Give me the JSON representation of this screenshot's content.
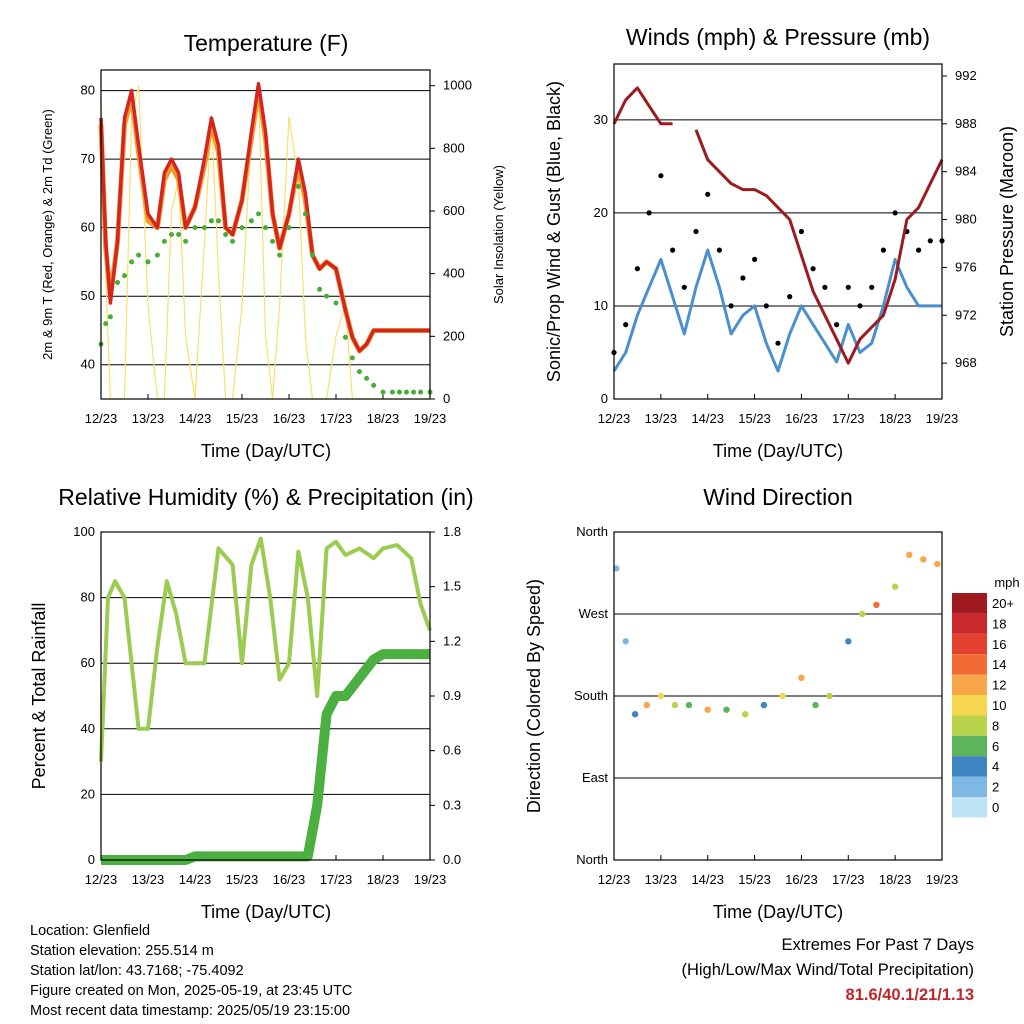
{
  "x_ticks": [
    "12/23",
    "13/23",
    "14/23",
    "15/23",
    "16/23",
    "17/23",
    "18/23",
    "19/23"
  ],
  "colors": {
    "temp_2m": "#d42520",
    "temp_9m": "#f39a2d",
    "dewpoint": "#47ad3a",
    "solar": "#f8e06a",
    "pressure": "#9c1b1e",
    "wind": "#4a90cf",
    "gust": "#000000",
    "rh": "#9bcb50",
    "precip": "#4bb040",
    "ext_values": "#c0272d"
  },
  "chart_data": [
    {
      "type": "line",
      "title": "Temperature (F)",
      "xlabel": "Time (Day/UTC)",
      "ylabel": "2m & 9m T (Red, Orange) & 2m Td (Green)",
      "ylabel_right": "Solar Insolation (Yellow)",
      "ylim": [
        35,
        83
      ],
      "y_ticks": [
        40,
        50,
        60,
        70,
        80
      ],
      "ylim_right": [
        0,
        1050
      ],
      "y_ticks_right": [
        0,
        200,
        400,
        600,
        800,
        1000
      ],
      "grid": true,
      "x_days": [
        0,
        0.1,
        0.2,
        0.35,
        0.5,
        0.65,
        0.8,
        1.0,
        1.2,
        1.35,
        1.5,
        1.65,
        1.8,
        2.0,
        2.2,
        2.35,
        2.5,
        2.65,
        2.8,
        3.0,
        3.2,
        3.35,
        3.5,
        3.65,
        3.8,
        4.0,
        4.2,
        4.35,
        4.5,
        4.65,
        4.8,
        5.0,
        5.2,
        5.35,
        5.5,
        5.65,
        5.8,
        6.0,
        6.2,
        6.35,
        6.5,
        6.65,
        6.8,
        7.0
      ],
      "series": [
        {
          "key": "temp_2m",
          "values": [
            76,
            58,
            49,
            58,
            76,
            80,
            72,
            62,
            60,
            68,
            70,
            68,
            60,
            63,
            70,
            76,
            72,
            60,
            59,
            64,
            74,
            81,
            74,
            62,
            57,
            62,
            70,
            65,
            56,
            54,
            55,
            54,
            48,
            44,
            42,
            43,
            45,
            45,
            45,
            45,
            45,
            45,
            45,
            45
          ]
        },
        {
          "key": "temp_9m",
          "values": [
            75,
            57,
            50,
            58,
            75,
            79,
            71,
            61,
            60,
            67,
            69,
            67,
            60,
            63,
            69,
            75,
            71,
            60,
            59,
            64,
            73,
            80,
            73,
            62,
            57,
            62,
            69,
            64,
            56,
            54,
            55,
            54,
            48,
            44,
            42,
            43,
            45,
            45,
            45,
            45,
            45,
            45,
            45,
            45
          ]
        },
        {
          "key": "dewpoint",
          "values": [
            43,
            46,
            47,
            52,
            53,
            55,
            56,
            55,
            56,
            58,
            59,
            59,
            58,
            60,
            60,
            61,
            61,
            59,
            58,
            60,
            61,
            62,
            60,
            58,
            56,
            60,
            66,
            62,
            56,
            51,
            50,
            49,
            44,
            41,
            39,
            38,
            37,
            36,
            36,
            36,
            36,
            36,
            36,
            36
          ]
        },
        {
          "key": "solar",
          "axis": "right",
          "values": [
            950,
            400,
            0,
            0,
            0,
            900,
            1000,
            300,
            0,
            0,
            600,
            700,
            200,
            0,
            500,
            900,
            400,
            0,
            0,
            300,
            850,
            1000,
            200,
            0,
            300,
            900,
            700,
            200,
            0,
            0,
            0,
            200,
            300,
            0,
            0,
            0,
            0,
            0,
            0,
            0,
            0,
            0,
            0,
            0
          ]
        }
      ]
    },
    {
      "type": "scatter",
      "title": "Winds (mph) & Pressure (mb)",
      "xlabel": "Time (Day/UTC)",
      "ylabel": "Sonic/Prop Wind & Gust (Blue, Black)",
      "ylabel_right": "Station Pressure (Maroon)",
      "ylim": [
        0,
        36
      ],
      "y_ticks": [
        0,
        10,
        20,
        30
      ],
      "ylim_right": [
        965,
        993
      ],
      "y_ticks_right": [
        968,
        972,
        976,
        980,
        984,
        988,
        992
      ],
      "grid": true,
      "x_days": [
        0,
        0.25,
        0.5,
        0.75,
        1.0,
        1.25,
        1.5,
        1.75,
        2.0,
        2.25,
        2.5,
        2.75,
        3.0,
        3.25,
        3.5,
        3.75,
        4.0,
        4.25,
        4.5,
        4.75,
        5.0,
        5.25,
        5.5,
        5.75,
        6.0,
        6.25,
        6.5,
        6.75,
        7.0
      ],
      "series": [
        {
          "key": "wind",
          "values": [
            3,
            5,
            9,
            12,
            15,
            11,
            7,
            12,
            16,
            12,
            7,
            9,
            10,
            6,
            3,
            7,
            10,
            8,
            6,
            4,
            8,
            5,
            6,
            10,
            15,
            12,
            10,
            10,
            10
          ]
        },
        {
          "key": "gust",
          "values": [
            5,
            8,
            14,
            20,
            24,
            16,
            12,
            18,
            22,
            16,
            10,
            13,
            15,
            10,
            6,
            11,
            18,
            14,
            12,
            8,
            12,
            10,
            12,
            16,
            20,
            18,
            16,
            17,
            17
          ]
        },
        {
          "key": "pressure",
          "axis": "right",
          "values": [
            988,
            990,
            991,
            989.5,
            988,
            988,
            null,
            987.5,
            985,
            984,
            983,
            982.5,
            982.5,
            982,
            981,
            980,
            977,
            974,
            972,
            970,
            968,
            970,
            971,
            972,
            975,
            980,
            981,
            983,
            985
          ]
        }
      ]
    },
    {
      "type": "line",
      "title": "Relative Humidity (%) & Precipitation (in)",
      "xlabel": "Time (Day/UTC)",
      "ylabel": "Percent & Total Rainfall",
      "ylim": [
        0,
        100
      ],
      "y_ticks": [
        0,
        20,
        40,
        60,
        80,
        100
      ],
      "ylim_right": [
        0,
        1.8
      ],
      "y_ticks_right": [
        "0.0",
        "0.3",
        "0.6",
        "0.9",
        "1.2",
        "1.5",
        "1.8"
      ],
      "grid": true,
      "x_days": [
        0,
        0.15,
        0.3,
        0.5,
        0.8,
        1.0,
        1.2,
        1.4,
        1.6,
        1.8,
        2.0,
        2.2,
        2.5,
        2.8,
        3.0,
        3.2,
        3.4,
        3.6,
        3.8,
        4.0,
        4.2,
        4.4,
        4.6,
        4.8,
        5.0,
        5.2,
        5.5,
        5.8,
        6.0,
        6.3,
        6.6,
        6.8,
        7.0
      ],
      "series": [
        {
          "key": "rh",
          "values": [
            30,
            80,
            85,
            80,
            40,
            40,
            65,
            85,
            75,
            60,
            60,
            60,
            95,
            90,
            60,
            90,
            98,
            80,
            55,
            60,
            94,
            80,
            50,
            95,
            97,
            93,
            95,
            92,
            95,
            96,
            92,
            78,
            70
          ]
        },
        {
          "key": "precip",
          "axis": "right",
          "values": [
            0,
            0,
            0,
            0,
            0,
            0,
            0,
            0,
            0,
            0,
            0.02,
            0.02,
            0.02,
            0.02,
            0.02,
            0.02,
            0.02,
            0.02,
            0.02,
            0.02,
            0.02,
            0.02,
            0.3,
            0.8,
            0.9,
            0.9,
            1.0,
            1.1,
            1.13,
            1.13,
            1.13,
            1.13,
            1.13
          ]
        }
      ]
    },
    {
      "type": "scatter",
      "title": "Wind Direction",
      "xlabel": "Time (Day/UTC)",
      "ylabel": "Direction (Colored By Speed)",
      "ylim": [
        0,
        360
      ],
      "y_ticks": [
        "North",
        "East",
        "South",
        "West",
        "North"
      ],
      "legend": {
        "title": "mph",
        "labels": [
          "20+",
          "18",
          "16",
          "14",
          "12",
          "10",
          "8",
          "6",
          "4",
          "2",
          "0"
        ],
        "colors": [
          "#9e1a1f",
          "#c9282d",
          "#e2412f",
          "#f26a35",
          "#f8a64a",
          "#f6d64f",
          "#b9d44b",
          "#5cb55b",
          "#3f84c3",
          "#7eb8e3",
          "#bde3f7"
        ]
      },
      "x_days": [
        0.05,
        0.25,
        0.45,
        0.7,
        1.0,
        1.3,
        1.6,
        2.0,
        2.4,
        2.8,
        3.2,
        3.6,
        4.0,
        4.3,
        4.6,
        5.0,
        5.3,
        5.6,
        6.0,
        6.3,
        6.6,
        6.9
      ],
      "values": [
        320,
        240,
        160,
        170,
        180,
        170,
        170,
        165,
        165,
        160,
        170,
        180,
        200,
        170,
        180,
        240,
        270,
        280,
        300,
        335,
        330,
        325
      ],
      "speeds": [
        2,
        2,
        4,
        12,
        10,
        8,
        6,
        12,
        6,
        8,
        4,
        10,
        12,
        6,
        8,
        4,
        8,
        14,
        8,
        12,
        12,
        12
      ]
    }
  ],
  "footer": {
    "location": "Location: Glenfield",
    "elevation": "Station elevation: 255.514 m",
    "latlon": "Station lat/lon: 43.7168; -75.4092",
    "created": "Figure created on Mon, 2025-05-19, at 23:45 UTC",
    "recent": "Most recent data timestamp: 2025/05/19 23:15:00"
  },
  "extremes": {
    "title": "Extremes For Past 7 Days",
    "subtitle": "(High/Low/Max Wind/Total Precipitation)",
    "values": "81.6/40.1/21/1.13"
  }
}
